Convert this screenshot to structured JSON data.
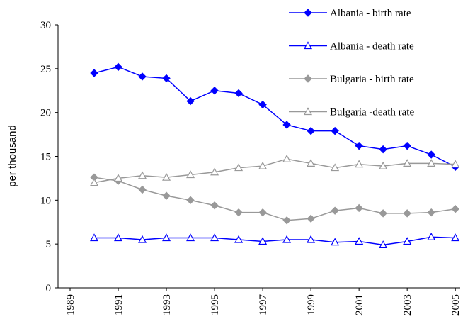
{
  "chart_data": {
    "type": "line",
    "y_label": "per thousand",
    "x": [
      1990,
      1991,
      1992,
      1993,
      1994,
      1995,
      1996,
      1997,
      1998,
      1999,
      2000,
      2001,
      2002,
      2003,
      2004,
      2005
    ],
    "xlim": [
      1988.5,
      2005.2
    ],
    "xticks": [
      1989,
      1991,
      1993,
      1995,
      1997,
      1999,
      2001,
      2003,
      2005
    ],
    "ylim": [
      0,
      30
    ],
    "yticks": [
      0,
      5,
      10,
      15,
      20,
      25,
      30
    ],
    "legend": "top-right",
    "series": [
      {
        "name": "Albania - birth rate",
        "color": "#0000ff",
        "marker": "diamond",
        "values": [
          24.5,
          25.2,
          24.1,
          23.9,
          21.3,
          22.5,
          22.2,
          20.9,
          18.6,
          17.9,
          17.9,
          16.2,
          15.8,
          16.2,
          15.2,
          13.8
        ]
      },
      {
        "name": "Albania - death rate",
        "color": "#0000ff",
        "marker": "triangle",
        "values": [
          5.7,
          5.7,
          5.5,
          5.7,
          5.7,
          5.7,
          5.5,
          5.3,
          5.5,
          5.5,
          5.2,
          5.3,
          4.9,
          5.3,
          5.8,
          5.7
        ]
      },
      {
        "name": "Bulgaria - birth rate",
        "color": "#999999",
        "marker": "diamond",
        "values": [
          12.6,
          12.2,
          11.2,
          10.5,
          10.0,
          9.4,
          8.6,
          8.6,
          7.7,
          7.9,
          8.8,
          9.1,
          8.5,
          8.5,
          8.6,
          9.0
        ]
      },
      {
        "name": "Bulgaria -death rate",
        "color": "#999999",
        "marker": "triangle",
        "values": [
          12.0,
          12.5,
          12.8,
          12.6,
          12.9,
          13.2,
          13.7,
          13.9,
          14.7,
          14.2,
          13.7,
          14.1,
          13.9,
          14.2,
          14.2,
          14.1
        ]
      }
    ]
  }
}
